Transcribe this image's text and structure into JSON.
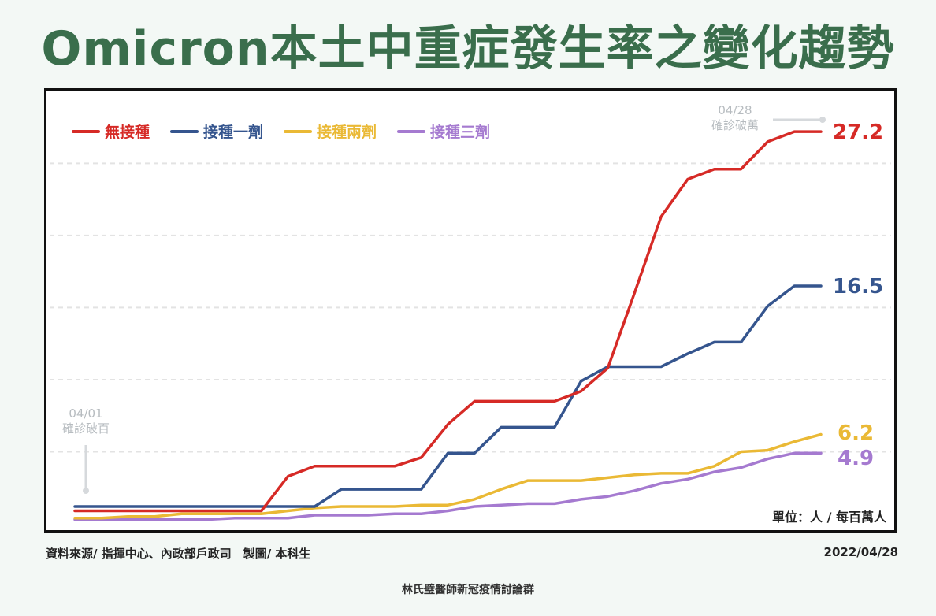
{
  "title": "Omicron本土中重症發生率之變化趨勢",
  "colors": {
    "title": "#3a6e4c",
    "unvaccinated": "#d62a26",
    "one_dose": "#35558e",
    "two_dose": "#eab935",
    "three_dose": "#a57ad0",
    "annotation": "#b7bcc0"
  },
  "chart_data": {
    "type": "line",
    "ylim": [
      0,
      29.5
    ],
    "x_count": 29,
    "grid": "horizontal dashed",
    "legend_position": "top-left",
    "unit": "單位：人 / 每百萬人",
    "series": [
      {
        "name": "無接種",
        "color": "#d62a26",
        "end_label": "27.2",
        "values": [
          0.9,
          0.9,
          0.9,
          0.9,
          0.9,
          0.9,
          0.9,
          0.9,
          3.3,
          4.0,
          4.0,
          4.0,
          4.0,
          4.6,
          6.9,
          8.5,
          8.5,
          8.5,
          8.5,
          9.2,
          10.8,
          16.0,
          21.3,
          23.9,
          24.6,
          24.6,
          26.5,
          27.2,
          27.2
        ]
      },
      {
        "name": "接種一劑",
        "color": "#35558e",
        "end_label": "16.5",
        "values": [
          1.2,
          1.2,
          1.2,
          1.2,
          1.2,
          1.2,
          1.2,
          1.2,
          1.2,
          1.2,
          2.4,
          2.4,
          2.4,
          2.4,
          4.9,
          4.9,
          6.7,
          6.7,
          6.7,
          9.9,
          10.9,
          10.9,
          10.9,
          11.8,
          12.6,
          12.6,
          15.1,
          16.5,
          16.5
        ]
      },
      {
        "name": "接種兩劑",
        "color": "#eab935",
        "end_label": "6.2",
        "values": [
          0.4,
          0.4,
          0.5,
          0.5,
          0.7,
          0.7,
          0.7,
          0.7,
          0.9,
          1.1,
          1.2,
          1.2,
          1.2,
          1.3,
          1.3,
          1.7,
          2.4,
          3.0,
          3.0,
          3.0,
          3.2,
          3.4,
          3.5,
          3.5,
          4.0,
          5.0,
          5.1,
          5.7,
          6.2
        ]
      },
      {
        "name": "接種三劑",
        "color": "#a57ad0",
        "end_label": "4.9",
        "values": [
          0.3,
          0.3,
          0.3,
          0.3,
          0.3,
          0.3,
          0.4,
          0.4,
          0.4,
          0.6,
          0.6,
          0.6,
          0.7,
          0.7,
          0.9,
          1.2,
          1.3,
          1.4,
          1.4,
          1.7,
          1.9,
          2.3,
          2.8,
          3.1,
          3.6,
          3.9,
          4.5,
          4.9,
          4.9
        ]
      }
    ],
    "annotations": [
      {
        "date": "04/01",
        "text": "確診破百",
        "x_index": 0
      },
      {
        "date": "04/28",
        "text": "確診破萬",
        "x_index": 28
      }
    ]
  },
  "footer": {
    "source": "資料來源/ 指揮中心、內政部戶政司　製圖/  本科生",
    "date": "2022/04/28",
    "credit": "林氏璧醫師新冠疫情討論群"
  }
}
